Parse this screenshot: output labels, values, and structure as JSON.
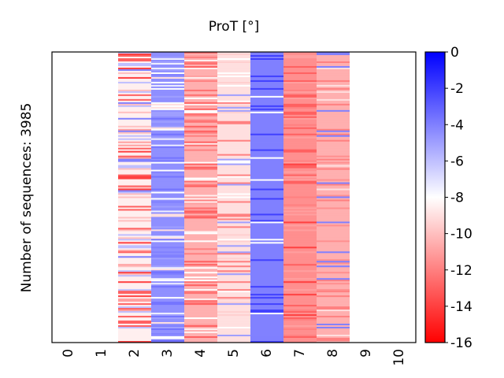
{
  "chart_data": {
    "type": "heatmap",
    "title": "ProT [°]",
    "ylabel": "Number of sequences: 3985",
    "xlabel": "",
    "n_rows": 3985,
    "x_ticks": [
      "0",
      "1",
      "2",
      "3",
      "4",
      "5",
      "6",
      "7",
      "8",
      "9",
      "10"
    ],
    "colorbar": {
      "colormap": "bwr",
      "vmin": -16,
      "vmax": 0,
      "ticks": [
        "0",
        "-2",
        "-4",
        "-6",
        "-8",
        "-10",
        "-12",
        "-14",
        "-16"
      ],
      "tick_values": [
        0,
        -2,
        -4,
        -6,
        -8,
        -10,
        -12,
        -14,
        -16
      ],
      "color_min": "#ff0000",
      "color_mid": "#ffffff",
      "color_max": "#0000ff"
    },
    "columns": [
      {
        "index": 0,
        "has_data": false
      },
      {
        "index": 1,
        "has_data": false
      },
      {
        "index": 2,
        "has_data": true,
        "typical_value": -8.5,
        "spread": 4.5,
        "states": [
          -4,
          -6,
          -10,
          -11,
          -13,
          -14
        ]
      },
      {
        "index": 3,
        "has_data": true,
        "typical_value": -4.5,
        "spread": 3.0,
        "states": [
          -3.6,
          -4,
          -5,
          -7.5,
          -8,
          -9
        ]
      },
      {
        "index": 4,
        "has_data": true,
        "typical_value": -10.5,
        "spread": 3.0,
        "states": [
          -8,
          -8.5,
          -11,
          -12,
          -12.5,
          -13
        ]
      },
      {
        "index": 5,
        "has_data": true,
        "typical_value": -9.0,
        "spread": 1.5,
        "states": [
          -9,
          -9,
          -9.5,
          -12,
          -5,
          -8
        ]
      },
      {
        "index": 6,
        "has_data": true,
        "typical_value": -4.0,
        "spread": 0.8,
        "states": [
          -4,
          -4,
          -4,
          -4,
          -8,
          -2
        ]
      },
      {
        "index": 7,
        "has_data": true,
        "typical_value": -11.5,
        "spread": 1.0,
        "states": [
          -11.5,
          -11.5,
          -11,
          -12,
          -13,
          -14
        ]
      },
      {
        "index": 8,
        "has_data": true,
        "typical_value": -10.5,
        "spread": 1.5,
        "states": [
          -10.5,
          -10.5,
          -9,
          -11.5,
          -12,
          -4
        ]
      },
      {
        "index": 9,
        "has_data": false
      },
      {
        "index": 10,
        "has_data": false
      }
    ]
  }
}
